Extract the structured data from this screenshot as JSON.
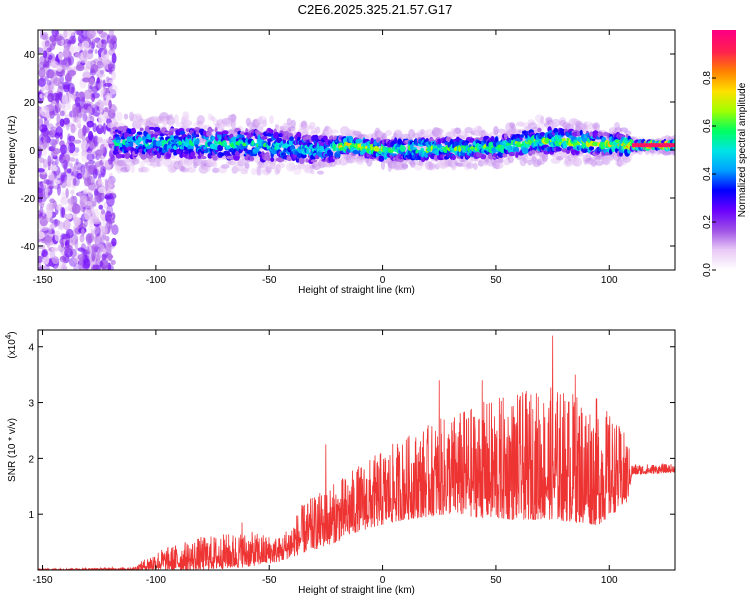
{
  "title": "C2E6.2025.325.21.57.G17",
  "chart_data": [
    {
      "type": "heatmap",
      "name": "spectrogram",
      "xlabel": "Height of straight line (km)",
      "ylabel": "Frequency (Hz)",
      "xlim": [
        -152,
        129
      ],
      "ylim": [
        -50,
        50
      ],
      "xticks": [
        -150,
        -100,
        -50,
        0,
        50,
        100
      ],
      "yticks": [
        -40,
        -20,
        0,
        20,
        40
      ],
      "colorbar": {
        "label": "Normalized spectral amplitude",
        "range": [
          0,
          1
        ],
        "ticks": [
          "0.0",
          "0.2",
          "0.4",
          "0.6",
          "0.8"
        ],
        "colors": [
          "#ffffff",
          "#e8c8f5",
          "#9d4fe6",
          "#6a00ff",
          "#0000ff",
          "#00a0ff",
          "#00e5e5",
          "#00ff60",
          "#a0ff00",
          "#ffe000",
          "#ff8000",
          "#ff2050",
          "#ff0080"
        ]
      },
      "band_profile": [
        {
          "x": -152,
          "center": 0,
          "halfwidth": 50,
          "amp": 0.3
        },
        {
          "x": -120,
          "center": 0,
          "halfwidth": 50,
          "amp": 0.3
        },
        {
          "x": -118,
          "center": 3,
          "halfwidth": 6,
          "amp": 0.45
        },
        {
          "x": -90,
          "center": 3,
          "halfwidth": 6,
          "amp": 0.5
        },
        {
          "x": -50,
          "center": 2,
          "halfwidth": 6,
          "amp": 0.5
        },
        {
          "x": -25,
          "center": 0,
          "halfwidth": 5,
          "amp": 0.5
        },
        {
          "x": -15,
          "center": 2,
          "halfwidth": 3,
          "amp": 0.8
        },
        {
          "x": 0,
          "center": 0,
          "halfwidth": 4,
          "amp": 0.6
        },
        {
          "x": 50,
          "center": 1,
          "halfwidth": 4,
          "amp": 0.6
        },
        {
          "x": 70,
          "center": 4,
          "halfwidth": 5,
          "amp": 0.6
        },
        {
          "x": 108,
          "center": 2,
          "halfwidth": 4,
          "amp": 0.7
        },
        {
          "x": 110,
          "center": 2,
          "halfwidth": 1.5,
          "amp": 0.95
        },
        {
          "x": 129,
          "center": 2,
          "halfwidth": 1.5,
          "amp": 0.95
        }
      ]
    },
    {
      "type": "line",
      "name": "snr",
      "xlabel": "Height of straight line (km)",
      "ylabel": "SNR (10 * v/v)",
      "yscale_label": "(x10",
      "yscale_exp": "4",
      "yscale_close": ")",
      "color": "#ee3333",
      "xlim": [
        -152,
        129
      ],
      "ylim": [
        0,
        4.3
      ],
      "xticks": [
        -150,
        -100,
        -50,
        0,
        50,
        100
      ],
      "yticks": [
        1,
        2,
        3,
        4
      ],
      "envelope": [
        {
          "x": -152,
          "base": 0.0,
          "peak": 0.02
        },
        {
          "x": -110,
          "base": 0.0,
          "peak": 0.05
        },
        {
          "x": -100,
          "base": 0.0,
          "peak": 0.35
        },
        {
          "x": -80,
          "base": 0.0,
          "peak": 0.6
        },
        {
          "x": -60,
          "base": 0.05,
          "peak": 0.7
        },
        {
          "x": -45,
          "base": 0.15,
          "peak": 0.6
        },
        {
          "x": -35,
          "base": 0.3,
          "peak": 1.2
        },
        {
          "x": -20,
          "base": 0.5,
          "peak": 1.6
        },
        {
          "x": -10,
          "base": 0.7,
          "peak": 1.9
        },
        {
          "x": 10,
          "base": 0.9,
          "peak": 2.4
        },
        {
          "x": 30,
          "base": 1.0,
          "peak": 2.8
        },
        {
          "x": 50,
          "base": 0.9,
          "peak": 3.1
        },
        {
          "x": 75,
          "base": 0.9,
          "peak": 3.3
        },
        {
          "x": 95,
          "base": 0.8,
          "peak": 3.1
        },
        {
          "x": 108,
          "base": 1.2,
          "peak": 2.4
        },
        {
          "x": 110,
          "base": 1.7,
          "peak": 1.9
        },
        {
          "x": 129,
          "base": 1.75,
          "peak": 1.9
        }
      ],
      "notable_peaks": [
        {
          "x": -62,
          "y": 0.85
        },
        {
          "x": -25,
          "y": 2.25
        },
        {
          "x": 25,
          "y": 3.4
        },
        {
          "x": 44,
          "y": 3.4
        },
        {
          "x": 75,
          "y": 4.2
        },
        {
          "x": 85,
          "y": 3.5
        }
      ]
    }
  ]
}
